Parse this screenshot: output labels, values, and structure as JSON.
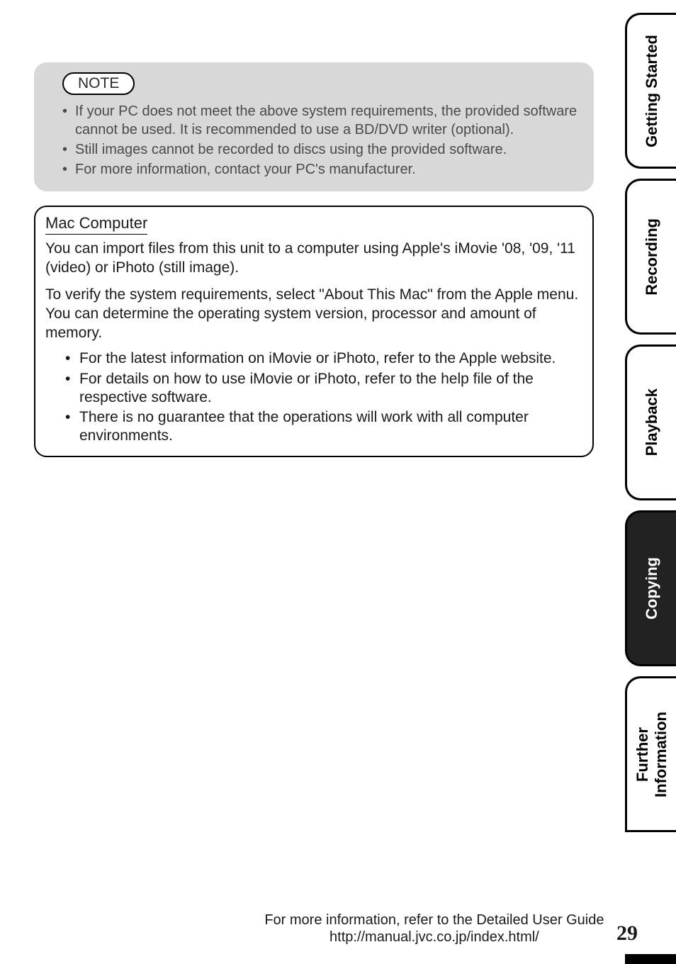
{
  "note": {
    "label": "NOTE",
    "items": [
      "If your PC does not meet the above system requirements, the provided software cannot be used. It is recommended to use a BD/DVD writer (optional).",
      "Still images cannot be recorded to discs using the provided software.",
      "For more information, contact your PC's manufacturer."
    ]
  },
  "mac": {
    "title": "Mac Computer",
    "para1": "You can import files from this unit to a computer using Apple's iMovie '08, '09, '11 (video) or iPhoto (still image).",
    "para2": "To verify the system requirements, select \"About This Mac\" from the Apple menu. You can determine the operating system version, processor and amount of memory.",
    "items": [
      "For the latest information on iMovie or iPhoto, refer to the Apple website.",
      "For details on how to use iMovie or iPhoto, refer to the help file of the respective software.",
      "There is no guarantee that the operations will work with all computer environments."
    ]
  },
  "tabs": {
    "t1": "Getting Started",
    "t2": "Recording",
    "t3": "Playback",
    "t4": "Copying",
    "t5": "Further\nInformation"
  },
  "footer": {
    "line1": "For more information, refer to the Detailed User Guide",
    "line2": "http://manual.jvc.co.jp/index.html/",
    "page": "29"
  }
}
